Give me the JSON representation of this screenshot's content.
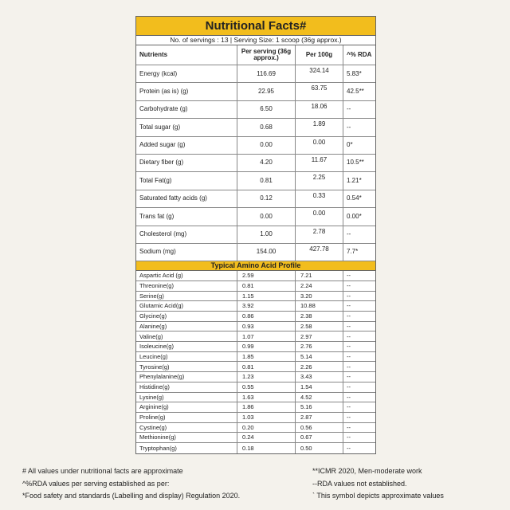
{
  "title": "Nutritional Facts#",
  "serving_info": "No. of servings : 13 | Serving Size: 1 scoop (36g approx.)",
  "headers": [
    "Nutrients",
    "Per serving (36g approx.)",
    "Per 100g",
    "^% RDA"
  ],
  "nutrients": [
    [
      "Energy (kcal)",
      "116.69",
      "324.14",
      "5.83*"
    ],
    [
      "Protein (as is) (g)",
      "22.95",
      "63.75",
      "42.5**"
    ],
    [
      "Carbohydrate (g)",
      "6.50",
      "18.06",
      "--"
    ],
    [
      "Total sugar (g)",
      "0.68",
      "1.89",
      "--"
    ],
    [
      "Added sugar (g)",
      "0.00",
      "0.00",
      "0*"
    ],
    [
      "Dietary fiber (g)",
      "4.20",
      "11.67",
      "10.5**"
    ],
    [
      "Total Fat(g)",
      "0.81",
      "2.25",
      "1.21*"
    ],
    [
      "Saturated fatty acids (g)",
      "0.12",
      "0.33",
      "0.54*"
    ],
    [
      "Trans fat (g)",
      "0.00",
      "0.00",
      "0.00*"
    ],
    [
      "Cholesterol (mg)",
      "1.00",
      "2.78",
      "--"
    ],
    [
      "Sodium (mg)",
      "154.00",
      "427.78",
      "7.7*"
    ]
  ],
  "amino_title": "Typical Amino Acid Profile",
  "amino": [
    [
      "Aspartic Acid (g)",
      "2.59",
      "7.21",
      "--"
    ],
    [
      "Threonine(g)",
      "0.81",
      "2.24",
      "--"
    ],
    [
      "Serine(g)",
      "1.15",
      "3.20",
      "--"
    ],
    [
      "Glutamic Acid(g)",
      "3.92",
      "10.88",
      "--"
    ],
    [
      "Glycine(g)",
      "0.86",
      "2.38",
      "--"
    ],
    [
      "Alanine(g)",
      "0.93",
      "2.58",
      "--"
    ],
    [
      "Valine(g)",
      "1.07",
      "2.97",
      "--"
    ],
    [
      "Isoleucine(g)",
      "0.99",
      "2.76",
      "--"
    ],
    [
      "Leucine(g)",
      "1.85",
      "5.14",
      "--"
    ],
    [
      "Tyrosine(g)",
      "0.81",
      "2.26",
      "--"
    ],
    [
      "Phenylalanine(g)",
      "1.23",
      "3.43",
      "--"
    ],
    [
      "Histidine(g)",
      "0.55",
      "1.54",
      "--"
    ],
    [
      "Lysine(g)",
      "1.63",
      "4.52",
      "--"
    ],
    [
      "Arginine(g)",
      "1.86",
      "5.16",
      "--"
    ],
    [
      "Proline(g)",
      "1.03",
      "2.87",
      "--"
    ],
    [
      "Cystine(g)",
      "0.20",
      "0.56",
      "--"
    ],
    [
      "Methionine(g)",
      "0.24",
      "0.67",
      "--"
    ],
    [
      "Tryptophan(g)",
      "0.18",
      "0.50",
      "--"
    ]
  ],
  "footnotes_left": [
    "# All values under nutritional facts are approximate",
    "^%RDA values per serving established as per:",
    "*Food safety and standards (Labelling and display) Regulation 2020."
  ],
  "footnotes_right": [
    "**ICMR 2020, Men-moderate work",
    "--RDA values not established.",
    "` This symbol depicts approximate values"
  ],
  "colors": {
    "accent": "#f2bd1d"
  }
}
